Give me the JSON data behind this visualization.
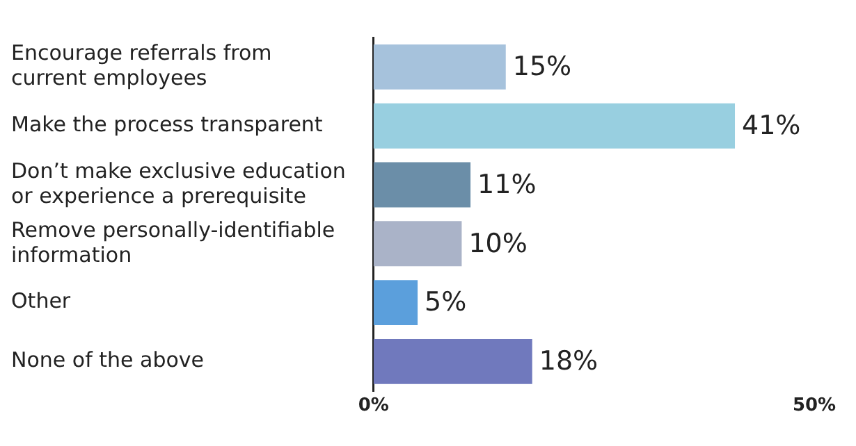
{
  "chart_data": {
    "type": "bar",
    "orientation": "horizontal",
    "categories": [
      "Encourage referrals from current employees",
      "Make the process transparent",
      "Don’t make exclusive education or experience a prerequisite",
      "Remove personally-identifiable information",
      "Other",
      "None of the above"
    ],
    "values": [
      15,
      41,
      11,
      10,
      5,
      18
    ],
    "value_labels": [
      "15%",
      "41%",
      "11%",
      "10%",
      "5%",
      "18%"
    ],
    "colors": [
      "#a6c2dc",
      "#98cfe0",
      "#6b8ea8",
      "#aab3c8",
      "#5b9fdc",
      "#7079bd"
    ],
    "xlim": [
      0,
      50
    ],
    "xticks": [
      {
        "value": 0,
        "label": "0%"
      },
      {
        "value": 50,
        "label": "50%"
      }
    ],
    "grid": false,
    "legend": false
  }
}
